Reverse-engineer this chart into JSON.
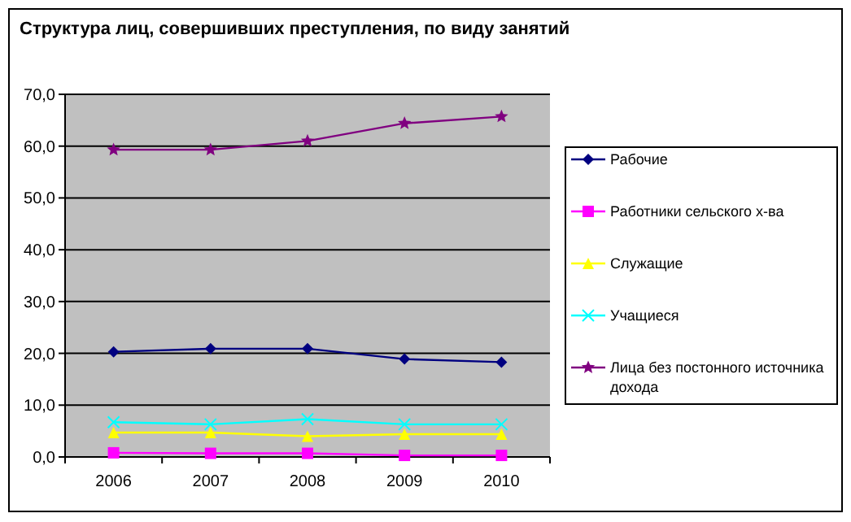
{
  "chart_data": {
    "type": "line",
    "title": "Структура лиц, совершивших преступления, по виду занятий",
    "categories": [
      "2006",
      "2007",
      "2008",
      "2009",
      "2010"
    ],
    "ylim": [
      0,
      70
    ],
    "yticks": [
      {
        "value": 0,
        "label": "0,0"
      },
      {
        "value": 10,
        "label": "10,0"
      },
      {
        "value": 20,
        "label": "20,0"
      },
      {
        "value": 30,
        "label": "30,0"
      },
      {
        "value": 40,
        "label": "40,0"
      },
      {
        "value": 50,
        "label": "50,0"
      },
      {
        "value": 60,
        "label": "60,0"
      },
      {
        "value": 70,
        "label": "70,0"
      }
    ],
    "grid": "y",
    "legend": "right",
    "series": [
      {
        "name": "Рабочие",
        "color": "#000080",
        "marker": "diamond",
        "values": [
          20.3,
          20.9,
          20.9,
          18.9,
          18.3
        ]
      },
      {
        "name": "Работники сельского х-ва",
        "color": "#ff00ff",
        "marker": "square",
        "values": [
          0.8,
          0.7,
          0.7,
          0.3,
          0.3
        ]
      },
      {
        "name": "Служащие",
        "color": "#ffff00",
        "marker": "triangle",
        "values": [
          4.7,
          4.7,
          4.0,
          4.4,
          4.4
        ]
      },
      {
        "name": "Учащиеся",
        "color": "#00ffff",
        "marker": "cross",
        "values": [
          6.7,
          6.3,
          7.3,
          6.3,
          6.3
        ]
      },
      {
        "name": "Лица без постонного источника дохода",
        "color": "#800080",
        "marker": "star",
        "values": [
          59.3,
          59.3,
          61.0,
          64.4,
          65.7
        ]
      }
    ]
  }
}
